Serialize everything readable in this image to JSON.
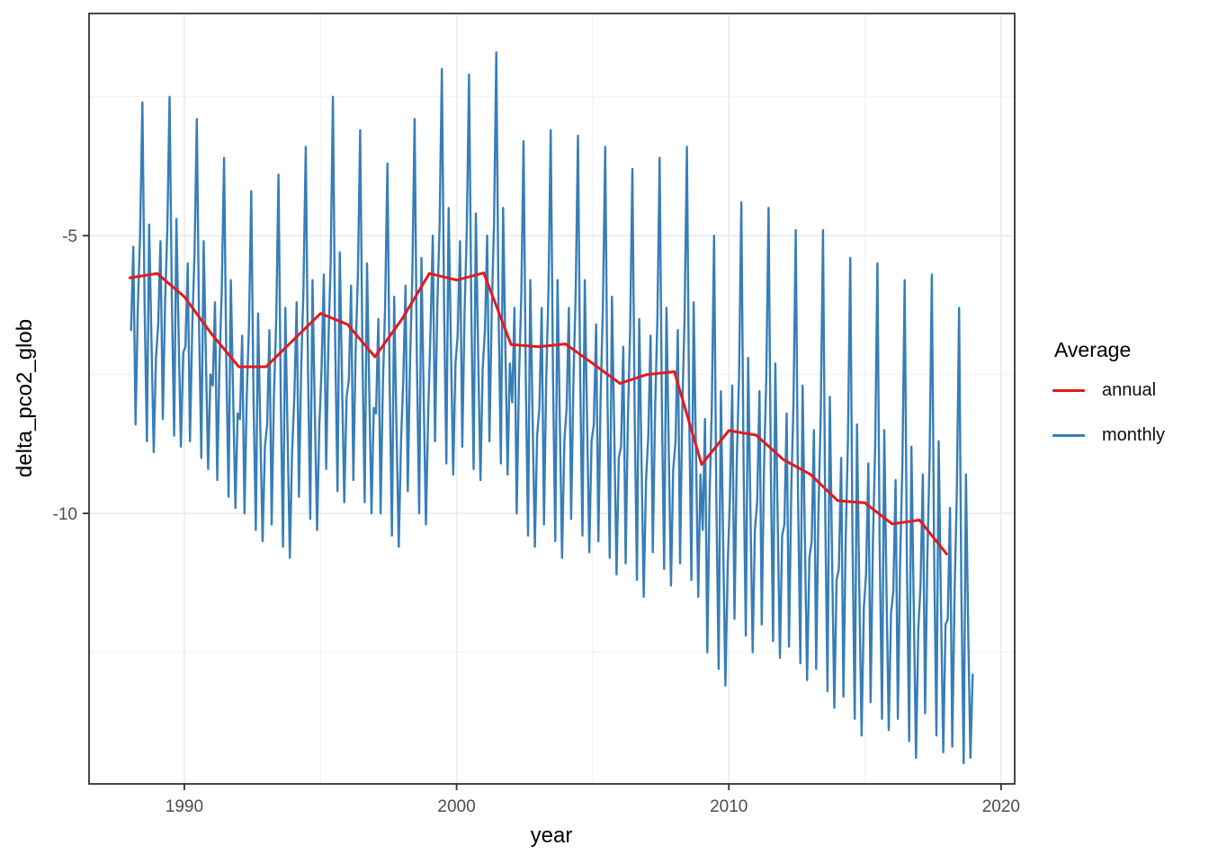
{
  "chart_data": {
    "type": "line",
    "title": "",
    "xlabel": "year",
    "ylabel": "delta_pco2_glob",
    "xlim": [
      1986.5,
      2020.5
    ],
    "ylim": [
      -14.87,
      -1.0
    ],
    "x_ticks": [
      1990,
      2000,
      2010,
      2020
    ],
    "y_ticks": [
      -5,
      -10
    ],
    "x_minor_ticks": [
      1995,
      2005,
      2015
    ],
    "y_minor_ticks": [
      -2.5,
      -7.5,
      -12.5
    ],
    "grid": true,
    "colors": {
      "annual": "#E41A1C",
      "monthly": "#377EB8",
      "grid_major": "#ebebeb",
      "grid_minor": "#f2f2f2",
      "panel_border": "#333333",
      "tick": "#333333",
      "tick_label": "#4d4d4d"
    },
    "legend": {
      "title": "Average",
      "position": "right",
      "entries": [
        {
          "label": "annual",
          "color": "#E41A1C"
        },
        {
          "label": "monthly",
          "color": "#377EB8"
        }
      ]
    },
    "series": [
      {
        "name": "annual",
        "color": "#E41A1C",
        "x_start_year": 1988,
        "x_step_years": 1,
        "values": [
          -5.76,
          -5.68,
          -6.1,
          -6.77,
          -7.36,
          -7.36,
          -6.88,
          -6.4,
          -6.6,
          -7.18,
          -6.5,
          -5.68,
          -5.8,
          -5.67,
          -6.96,
          -7.0,
          -6.95,
          -7.3,
          -7.66,
          -7.5,
          -7.45,
          -9.12,
          -8.51,
          -8.59,
          -9.03,
          -9.3,
          -9.77,
          -9.81,
          -10.19,
          -10.12,
          -10.73
        ]
      },
      {
        "name": "monthly",
        "color": "#377EB8",
        "x_start_year": 1988,
        "x_step_months": 1,
        "values": [
          -6.7,
          -5.2,
          -8.4,
          -6.3,
          -5.0,
          -2.6,
          -6.3,
          -8.7,
          -4.8,
          -6.9,
          -8.9,
          -7.2,
          -6.6,
          -5.1,
          -8.3,
          -6.2,
          -4.9,
          -2.5,
          -6.2,
          -8.6,
          -4.7,
          -6.8,
          -8.8,
          -7.1,
          -7.0,
          -5.5,
          -8.7,
          -6.6,
          -5.3,
          -2.9,
          -6.6,
          -9.0,
          -5.1,
          -7.2,
          -9.2,
          -7.5,
          -7.7,
          -6.2,
          -9.4,
          -7.3,
          -6.0,
          -3.6,
          -7.3,
          -9.7,
          -5.8,
          -7.9,
          -9.9,
          -8.2,
          -8.3,
          -6.8,
          -10.0,
          -7.9,
          -6.6,
          -4.2,
          -7.9,
          -10.3,
          -6.4,
          -8.5,
          -10.5,
          -8.8,
          -8.4,
          -6.7,
          -10.2,
          -7.9,
          -6.5,
          -3.9,
          -7.9,
          -10.6,
          -6.3,
          -8.6,
          -10.8,
          -8.9,
          -7.9,
          -6.2,
          -9.7,
          -7.4,
          -6.0,
          -3.4,
          -7.4,
          -10.1,
          -5.8,
          -8.1,
          -10.3,
          -8.4,
          -7.4,
          -5.7,
          -9.2,
          -6.9,
          -5.5,
          -2.5,
          -6.9,
          -9.6,
          -5.3,
          -7.6,
          -9.8,
          -7.9,
          -7.6,
          -5.9,
          -9.4,
          -7.1,
          -5.7,
          -3.1,
          -7.1,
          -9.8,
          -5.5,
          -7.8,
          -10.0,
          -8.1,
          -8.2,
          -6.5,
          -10.0,
          -7.7,
          -6.3,
          -3.7,
          -7.7,
          -10.4,
          -6.1,
          -8.4,
          -10.6,
          -8.7,
          -7.6,
          -5.9,
          -9.6,
          -7.2,
          -5.7,
          -2.9,
          -7.2,
          -10.0,
          -5.4,
          -7.9,
          -10.2,
          -8.2,
          -6.7,
          -5.0,
          -8.7,
          -6.3,
          -4.8,
          -2.0,
          -6.3,
          -9.1,
          -4.5,
          -7.0,
          -9.3,
          -7.3,
          -6.8,
          -5.1,
          -8.8,
          -6.4,
          -4.9,
          -2.1,
          -6.4,
          -9.2,
          -4.6,
          -7.1,
          -9.4,
          -7.4,
          -6.7,
          -5.0,
          -8.7,
          -6.3,
          -4.8,
          -1.7,
          -6.3,
          -9.1,
          -4.5,
          -7.0,
          -9.3,
          -7.3,
          -8.0,
          -6.3,
          -10.0,
          -7.6,
          -6.1,
          -3.3,
          -7.6,
          -10.4,
          -5.8,
          -8.3,
          -10.6,
          -8.6,
          -8.1,
          -6.3,
          -10.2,
          -7.6,
          -6.0,
          -3.1,
          -7.6,
          -10.5,
          -5.8,
          -8.3,
          -10.8,
          -8.7,
          -8.1,
          -6.3,
          -10.1,
          -7.6,
          -6.0,
          -3.2,
          -7.6,
          -10.4,
          -5.8,
          -8.3,
          -10.7,
          -8.7,
          -8.4,
          -6.6,
          -10.5,
          -7.9,
          -6.3,
          -3.4,
          -7.9,
          -10.8,
          -6.1,
          -8.6,
          -11.1,
          -9.0,
          -8.8,
          -7.0,
          -10.9,
          -8.3,
          -6.7,
          -3.8,
          -8.3,
          -11.2,
          -6.5,
          -9.0,
          -11.5,
          -9.4,
          -8.6,
          -6.8,
          -10.7,
          -8.1,
          -6.5,
          -3.6,
          -8.1,
          -11.0,
          -6.3,
          -8.8,
          -11.3,
          -9.2,
          -8.7,
          -6.7,
          -10.9,
          -8.1,
          -6.5,
          -3.4,
          -8.1,
          -11.2,
          -6.2,
          -8.9,
          -11.5,
          -9.3,
          -10.3,
          -8.3,
          -12.5,
          -9.7,
          -8.1,
          -5.0,
          -9.7,
          -12.8,
          -7.8,
          -10.5,
          -13.1,
          -10.9,
          -9.7,
          -7.7,
          -11.9,
          -9.1,
          -7.5,
          -4.4,
          -9.1,
          -12.2,
          -7.2,
          -9.9,
          -12.5,
          -10.3,
          -9.8,
          -7.8,
          -12.0,
          -9.2,
          -7.6,
          -4.5,
          -9.2,
          -12.3,
          -7.3,
          -10.0,
          -12.6,
          -10.4,
          -10.2,
          -8.2,
          -12.4,
          -9.6,
          -8.0,
          -4.9,
          -9.6,
          -12.7,
          -7.7,
          -10.4,
          -13.0,
          -10.8,
          -10.5,
          -8.5,
          -12.8,
          -10.0,
          -8.2,
          -4.9,
          -10.0,
          -13.2,
          -7.9,
          -10.8,
          -13.5,
          -11.2,
          -11.0,
          -9.0,
          -13.3,
          -10.5,
          -8.7,
          -5.4,
          -10.5,
          -13.7,
          -8.4,
          -11.3,
          -14.0,
          -11.7,
          -11.1,
          -9.1,
          -13.4,
          -10.5,
          -8.8,
          -5.5,
          -10.6,
          -13.7,
          -8.5,
          -11.4,
          -13.9,
          -11.8,
          -11.4,
          -9.4,
          -13.7,
          -10.9,
          -9.1,
          -5.8,
          -10.9,
          -14.1,
          -8.8,
          -11.7,
          -14.4,
          -12.1,
          -11.3,
          -9.3,
          -13.6,
          -10.8,
          -9.0,
          -5.7,
          -10.8,
          -14.0,
          -8.7,
          -11.6,
          -14.3,
          -12.0,
          -11.9,
          -9.9,
          -14.2,
          -11.4,
          -9.6,
          -6.3,
          -11.4,
          -14.5,
          -9.3,
          -12.1,
          -14.4,
          -12.9
        ]
      }
    ]
  }
}
